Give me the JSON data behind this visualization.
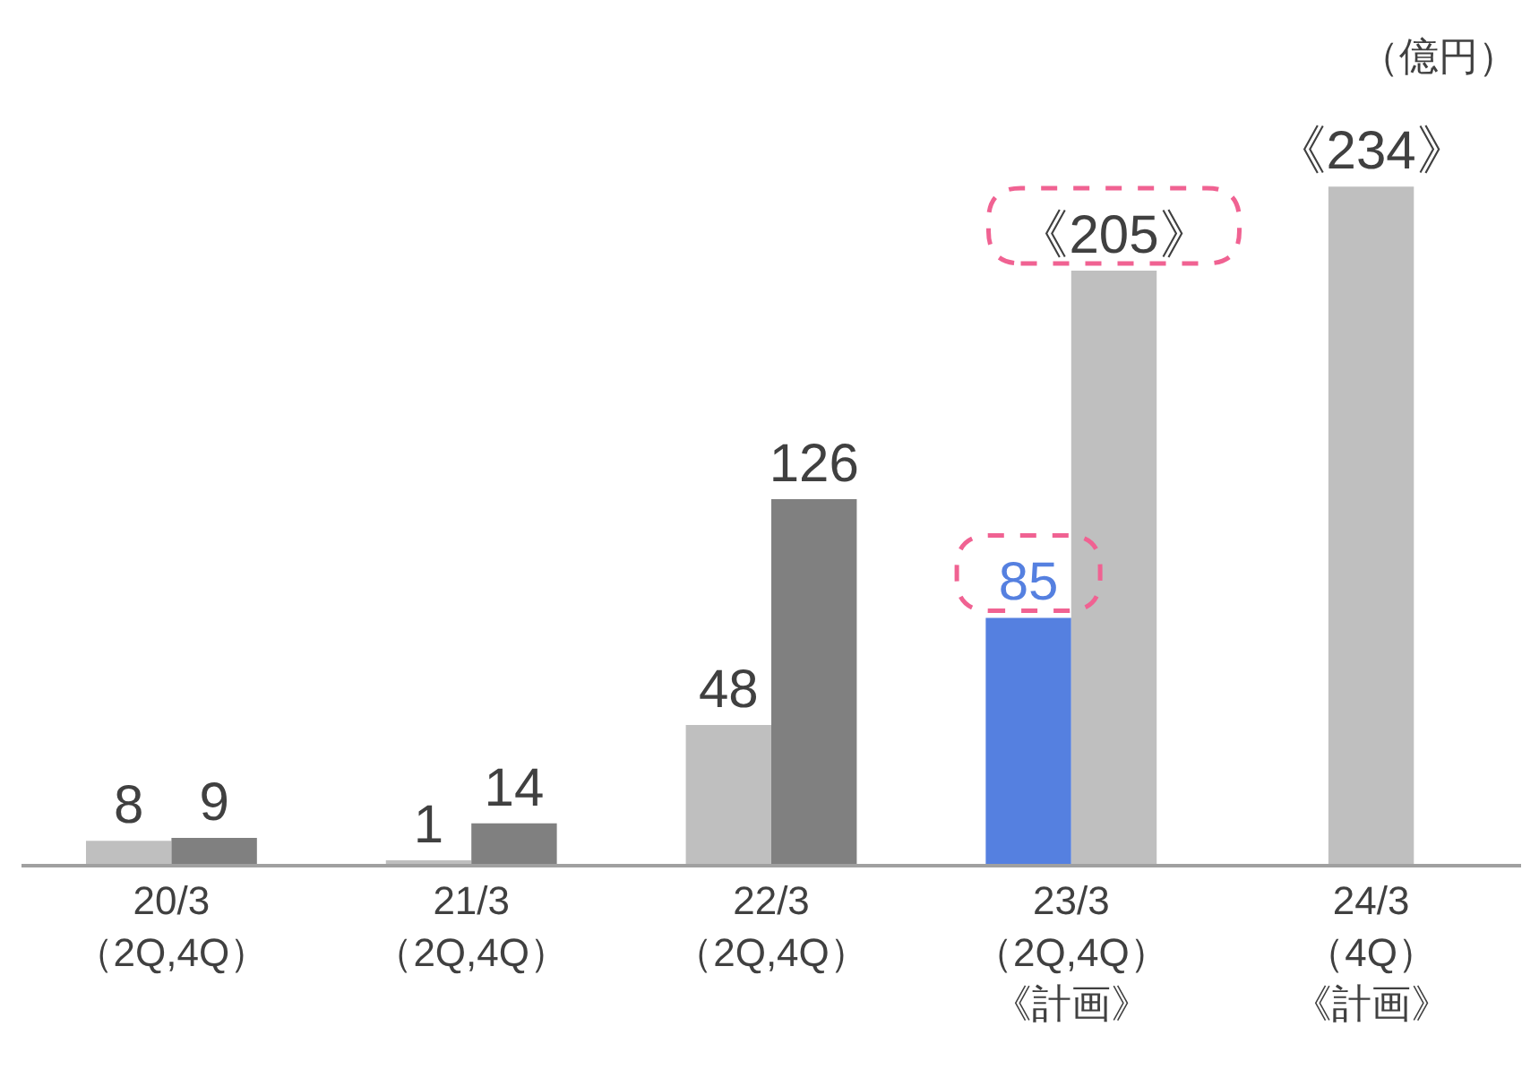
{
  "chart_data": {
    "type": "bar",
    "categories": [
      "20/3\n（2Q,4Q）",
      "21/3\n（2Q,4Q）",
      "22/3\n（2Q,4Q）",
      "23/3\n（2Q,4Q）《計画》",
      "24/3\n（4Q）《計画》"
    ],
    "series": [
      {
        "colors": [
          "#bfbfbf",
          "#bfbfbf",
          "#bfbfbf",
          "#5580e0",
          null
        ],
        "values": [
          8,
          1,
          48,
          85,
          null
        ],
        "value_labels": [
          "8",
          "1",
          "48",
          "85",
          null
        ]
      },
      {
        "colors": [
          "#808080",
          "#808080",
          "#808080",
          "#bfbfbf",
          "#bfbfbf"
        ],
        "values": [
          9,
          14,
          126,
          205,
          234
        ],
        "value_labels": [
          "9",
          "14",
          "126",
          "《205》",
          "《234》"
        ]
      }
    ],
    "annotations": [
      "（億円）"
    ],
    "legend": false
  }
}
